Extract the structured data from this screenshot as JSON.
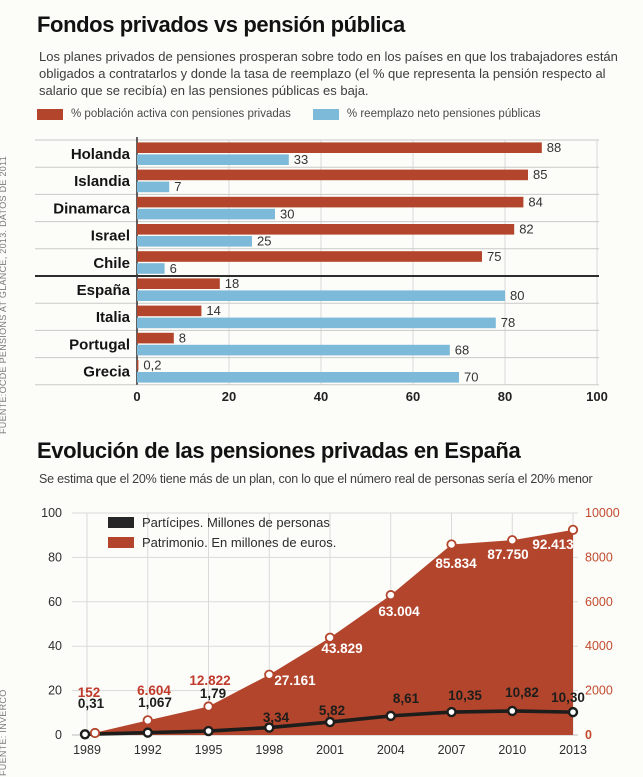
{
  "top_section": {
    "title": "Fondos privados vs pensión pública",
    "intro": "Los planes privados de pensiones prosperan sobre todo en los países en que los trabajadores están obligados a contratarlos y donde la tasa de reemplazo (el % que representa la pensión respecto al salario que se recibía) en las pensiones públicas es baja.",
    "legend": [
      {
        "label": "% población activa con pensiones privadas",
        "color": "#b3452c"
      },
      {
        "label": "% reemplazo neto pensiones públicas",
        "color": "#7db9d9"
      }
    ],
    "source": "FUENTE:OCDE PENSIONS AT GLANCE, 2013. DATOS DE 2011"
  },
  "bottom_section": {
    "title": "Evolución de las pensiones privadas en España",
    "subtitle": "Se estima que el 20% tiene más de un plan, con lo que el número real de personas sería el 20% menor",
    "legend": [
      {
        "label": "Partícipes. Millones de personas",
        "color": "#262626"
      },
      {
        "label": "Patrimonio. En millones de euros.",
        "color": "#b3452c"
      }
    ],
    "source": "FUENTE: INVERCO"
  },
  "chart_data": [
    {
      "type": "bar",
      "orientation": "horizontal",
      "title": "Fondos privados vs pensión pública",
      "categories": [
        "Holanda",
        "Islandia",
        "Dinamarca",
        "Israel",
        "Chile",
        "España",
        "Italia",
        "Portugal",
        "Grecia"
      ],
      "series": [
        {
          "name": "% población activa con pensiones privadas",
          "color": "#b3452c",
          "values": [
            88,
            85,
            84,
            82,
            75,
            18,
            14,
            8,
            0.2
          ],
          "labels": [
            "88",
            "85",
            "84",
            "82",
            "75",
            "18",
            "14",
            "8",
            "0,2"
          ]
        },
        {
          "name": "% reemplazo neto pensiones públicas",
          "color": "#7db9d9",
          "values": [
            33,
            7,
            30,
            25,
            6,
            80,
            78,
            68,
            70
          ],
          "labels": [
            "33",
            "7",
            "30",
            "25",
            "6",
            "80",
            "78",
            "68",
            "70"
          ]
        }
      ],
      "x_ticks": [
        0,
        20,
        40,
        60,
        80,
        100
      ],
      "xlim": [
        0,
        100
      ],
      "divider_after_index": 4,
      "grid": true,
      "legend_position": "top"
    },
    {
      "type": "line+area",
      "title": "Evolución de las pensiones privadas en España",
      "x": [
        1989,
        1992,
        1995,
        1998,
        2001,
        2004,
        2007,
        2010,
        2013
      ],
      "series": [
        {
          "name": "Partícipes. Millones de personas",
          "type": "line",
          "axis": "left",
          "color": "#1d1d1b",
          "values": [
            0.31,
            1.067,
            1.79,
            3.34,
            5.82,
            8.61,
            10.35,
            10.82,
            10.3
          ],
          "labels": [
            "0,31",
            "1,067",
            "1,79",
            "3,34",
            "5,82",
            "8,61",
            "10,35",
            "10,82",
            "10,30"
          ]
        },
        {
          "name": "Patrimonio. En millones de euros.",
          "type": "area",
          "axis": "right",
          "color": "#b3452c",
          "values": [
            152,
            6604,
            12822,
            27161,
            43829,
            63004,
            85834,
            87750,
            92413
          ],
          "labels": [
            "152",
            "6.604",
            "12.822",
            "27.161",
            "43.829",
            "63.004",
            "85.834",
            "87.750",
            "92.413"
          ],
          "label_colors": [
            "#c0392b",
            "#c0392b",
            "#c0392b",
            "#ffffff",
            "#ffffff",
            "#ffffff",
            "#ffffff",
            "#ffffff",
            "#ffffff"
          ],
          "plot_note": "plotted at value/10 against right axis"
        }
      ],
      "left_axis": {
        "ticks": [
          0,
          20,
          40,
          60,
          80,
          100
        ],
        "range": [
          0,
          100
        ],
        "color": "#2e2e2e"
      },
      "right_axis": {
        "ticks": [
          0,
          2000,
          4000,
          6000,
          8000,
          10000
        ],
        "range": [
          0,
          10000
        ],
        "color": "#c24b2e"
      },
      "grid": true,
      "legend_position": "top-left-inside"
    }
  ]
}
